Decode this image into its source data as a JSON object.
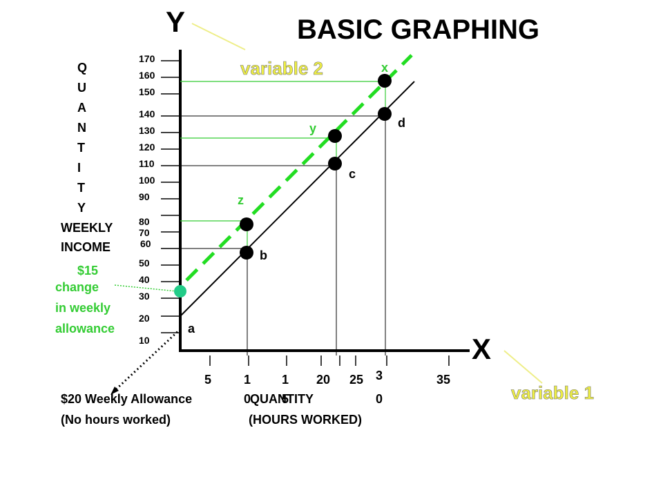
{
  "title": "BASIC GRAPHING",
  "axes": {
    "y_letter": "Y",
    "x_letter": "X",
    "y_variable": "variable 2",
    "x_variable": "variable 1",
    "y_label_vertical": [
      "Q",
      "U",
      "A",
      "N",
      "T",
      "I",
      "T",
      "Y"
    ],
    "y_label_sub": [
      "WEEKLY",
      "INCOME"
    ],
    "x_label": "QUANTITY",
    "x_label_sub": "(HOURS WORKED)",
    "y_ticks": [
      "170",
      "160",
      "150",
      "140",
      "130",
      "120",
      "110",
      "100",
      "90",
      "80",
      "70",
      "60",
      "50",
      "40",
      "30",
      "20",
      "10"
    ],
    "x_ticks": [
      "5",
      "1\n0",
      "1\n5",
      "20",
      "25",
      "3\n0",
      "35"
    ]
  },
  "annotations": {
    "shift": [
      "$15",
      "change",
      "in weekly",
      "allowance"
    ],
    "origin_note": [
      "$20 Weekly Allowance",
      "(No hours worked)"
    ]
  },
  "points": {
    "a": "a",
    "b": "b",
    "c": "c",
    "d": "d",
    "x": "x",
    "y": "y",
    "z": "z"
  },
  "colors": {
    "original_line": "#000000",
    "shifted_line": "#22dd22",
    "annotation_green": "#33cc33",
    "guide_green": "#33cc33",
    "pointer_yellow": "#eeee88",
    "teal_point": "#22cc88"
  }
}
